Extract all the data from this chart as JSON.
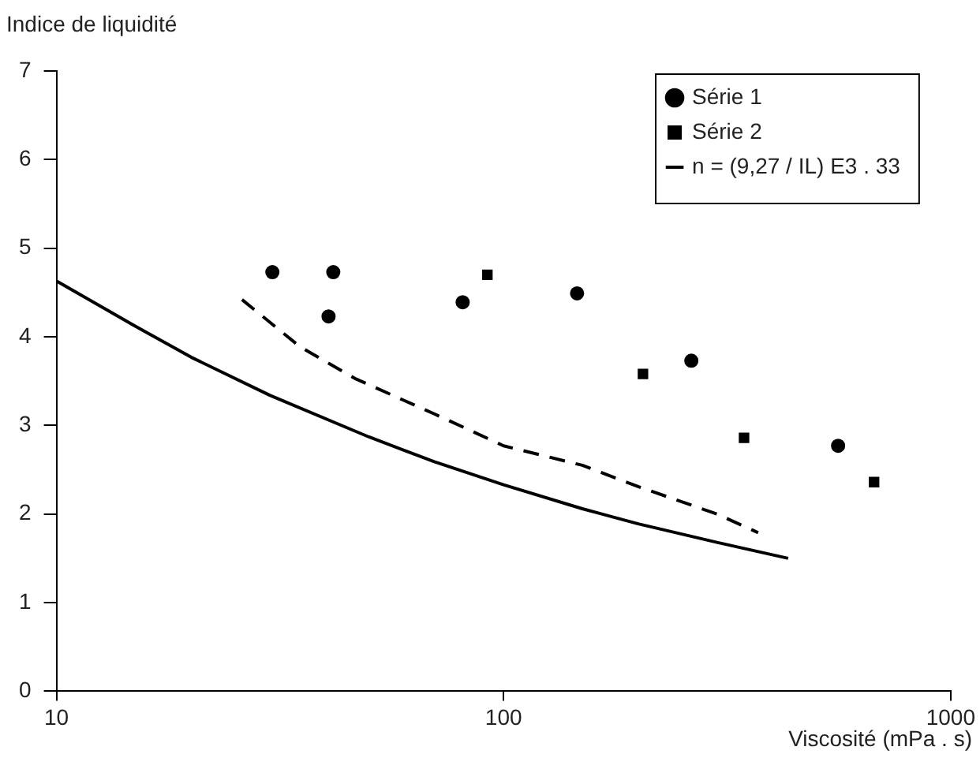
{
  "chart_data": {
    "type": "scatter",
    "xlabel": "Viscosité (mPa . s)",
    "ylabel": "Indice de liquidité",
    "log": "x",
    "xlim": [
      10,
      1000
    ],
    "xticks": [
      10,
      100,
      1000
    ],
    "ylim": [
      0,
      7
    ],
    "yticks": [
      0,
      1,
      2,
      3,
      4,
      5,
      6,
      7
    ],
    "grid": false,
    "legend": "top right",
    "series": [
      {
        "name": "Série 1",
        "marker": "circle",
        "color": "#000000",
        "x": [
          30.4,
          41.6,
          40.6,
          81,
          146,
          263,
          560
        ],
        "values": [
          4.73,
          4.73,
          4.23,
          4.39,
          4.49,
          3.73,
          2.77
        ]
      },
      {
        "name": "Série 2",
        "marker": "square",
        "color": "#000000",
        "x": [
          92,
          205,
          345,
          674
        ],
        "values": [
          4.7,
          3.58,
          2.86,
          2.36
        ]
      },
      {
        "name": "n = (9,27 / IL) E3 . 33",
        "type": "line",
        "marker": "none",
        "line_style": "solid",
        "color": "#000000",
        "x": [
          10,
          15,
          20,
          30,
          50,
          70,
          100,
          150,
          200,
          300,
          433
        ],
        "values": [
          4.63,
          4.12,
          3.77,
          3.34,
          2.87,
          2.59,
          2.33,
          2.06,
          1.89,
          1.68,
          1.5
        ]
      },
      {
        "type": "line",
        "marker": "none",
        "line_style": "dashed",
        "color": "#000000",
        "x": [
          26,
          35,
          46.5,
          70,
          100,
          150,
          200,
          300,
          371
        ],
        "values": [
          4.42,
          3.89,
          3.53,
          3.13,
          2.77,
          2.55,
          2.31,
          2.0,
          1.79
        ]
      }
    ]
  }
}
